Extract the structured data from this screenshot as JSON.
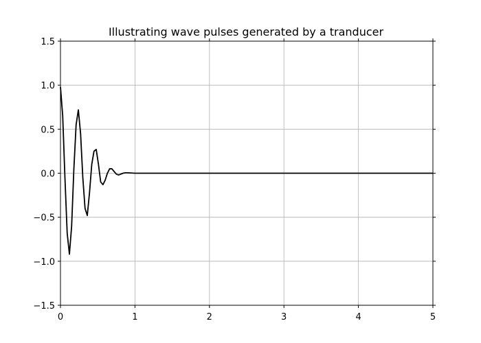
{
  "chart_data": {
    "type": "line",
    "title": "Illustrating wave pulses generated by a tranducer",
    "xlabel": "",
    "ylabel": "",
    "xlim": [
      0,
      5
    ],
    "ylim": [
      -1.5,
      1.5
    ],
    "grid": true,
    "x_ticks": [
      0,
      1,
      2,
      3,
      4,
      5
    ],
    "y_ticks": [
      -1.5,
      -1.0,
      -0.5,
      0.0,
      0.5,
      1.0,
      1.5
    ],
    "x_tick_labels": [
      "0",
      "1",
      "2",
      "3",
      "4",
      "5"
    ],
    "y_tick_labels": [
      "−1.5",
      "−1.0",
      "−0.5",
      "0.0",
      "0.5",
      "1.0",
      "1.5"
    ],
    "line_color": "#000000",
    "series": [
      {
        "x": [
          0.0,
          0.03,
          0.06,
          0.09,
          0.12,
          0.15,
          0.18,
          0.21,
          0.24,
          0.27,
          0.3,
          0.33,
          0.36,
          0.39,
          0.42,
          0.45,
          0.48,
          0.51,
          0.54,
          0.57,
          0.6,
          0.63,
          0.66,
          0.69,
          0.72,
          0.75,
          0.78,
          0.81,
          0.84,
          0.87,
          0.9,
          1.0,
          1.5,
          2.0,
          2.5,
          3.0,
          3.5,
          4.0,
          4.5,
          5.0
        ],
        "y": [
          0.98,
          0.65,
          -0.05,
          -0.68,
          -0.92,
          -0.6,
          0.05,
          0.55,
          0.72,
          0.45,
          -0.05,
          -0.4,
          -0.48,
          -0.22,
          0.1,
          0.25,
          0.27,
          0.1,
          -0.1,
          -0.13,
          -0.08,
          0.0,
          0.05,
          0.05,
          0.02,
          -0.01,
          -0.02,
          -0.01,
          0.0,
          0.005,
          0.005,
          0.0,
          0.0,
          0.0,
          0.0,
          0.0,
          0.0,
          0.0,
          0.0,
          0.0
        ]
      }
    ]
  }
}
